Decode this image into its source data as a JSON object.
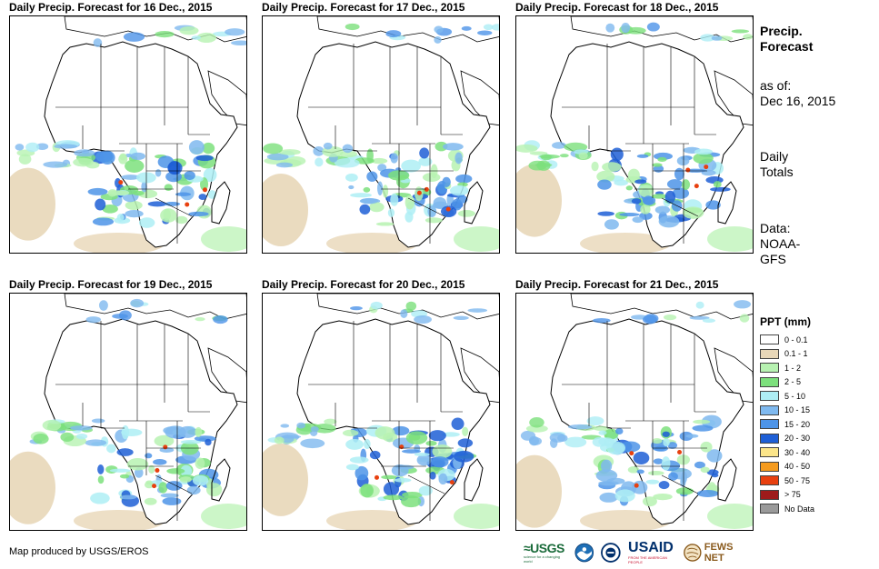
{
  "panels": [
    {
      "title": "Daily Precip. Forecast for 16 Dec., 2015",
      "seed": 3
    },
    {
      "title": "Daily Precip. Forecast for 17 Dec., 2015",
      "seed": 11
    },
    {
      "title": "Daily Precip. Forecast for 18 Dec., 2015",
      "seed": 23
    },
    {
      "title": "Daily Precip. Forecast for 19 Dec., 2015",
      "seed": 37
    },
    {
      "title": "Daily Precip. Forecast for 20 Dec., 2015",
      "seed": 51
    },
    {
      "title": "Daily Precip. Forecast for 21 Dec., 2015",
      "seed": 67
    }
  ],
  "sidebar": {
    "title_line1": "Precip.",
    "title_line2": "Forecast",
    "asof_label": "as of:",
    "asof_date": "Dec 16, 2015",
    "totals_line1": "Daily",
    "totals_line2": "Totals",
    "data_line1": "Data:",
    "data_line2": "NOAA-",
    "data_line3": "GFS"
  },
  "legend": {
    "title": "PPT (mm)",
    "items": [
      {
        "label": "0 - 0.1",
        "color": "#ffffff"
      },
      {
        "label": "0.1 - 1",
        "color": "#e8d7b8"
      },
      {
        "label": "1 - 2",
        "color": "#b7f2b1"
      },
      {
        "label": "2 - 5",
        "color": "#7ce07c"
      },
      {
        "label": "5 - 10",
        "color": "#aeeef5"
      },
      {
        "label": "10 - 15",
        "color": "#7fb9ef"
      },
      {
        "label": "15 - 20",
        "color": "#4d94e8"
      },
      {
        "label": "20 - 30",
        "color": "#1e5fd6"
      },
      {
        "label": "30 - 40",
        "color": "#fbe58a"
      },
      {
        "label": "40 - 50",
        "color": "#f59b1e"
      },
      {
        "label": "50 - 75",
        "color": "#e8400f"
      },
      {
        "label": "> 75",
        "color": "#9e1b1b"
      },
      {
        "label": "No Data",
        "color": "#9a9a9a"
      }
    ]
  },
  "footer": {
    "credit": "Map produced by USGS/EROS"
  },
  "logos": {
    "usgs": "≈USGS",
    "usgs_tagline": "science for a changing world",
    "usaid": "USAID",
    "usaid_tagline": "FROM THE AMERICAN PEOPLE",
    "fews": "FEWS NET"
  }
}
